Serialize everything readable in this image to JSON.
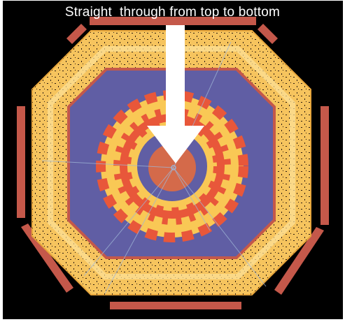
{
  "caption": "Straight  through from top to bottom",
  "colors": {
    "background": "#000000",
    "outer_frame": "#c4584a",
    "calorimeter_yellow": "#f6c45e",
    "calorimeter_light": "#fde39a",
    "inner_blue": "#605ea4",
    "ring_red": "#e8573a",
    "ring_yellow": "#f9c855",
    "core": "#d46a4a",
    "arrow": "#ffffff"
  },
  "icons": {
    "arrow": "down-arrow-icon"
  }
}
